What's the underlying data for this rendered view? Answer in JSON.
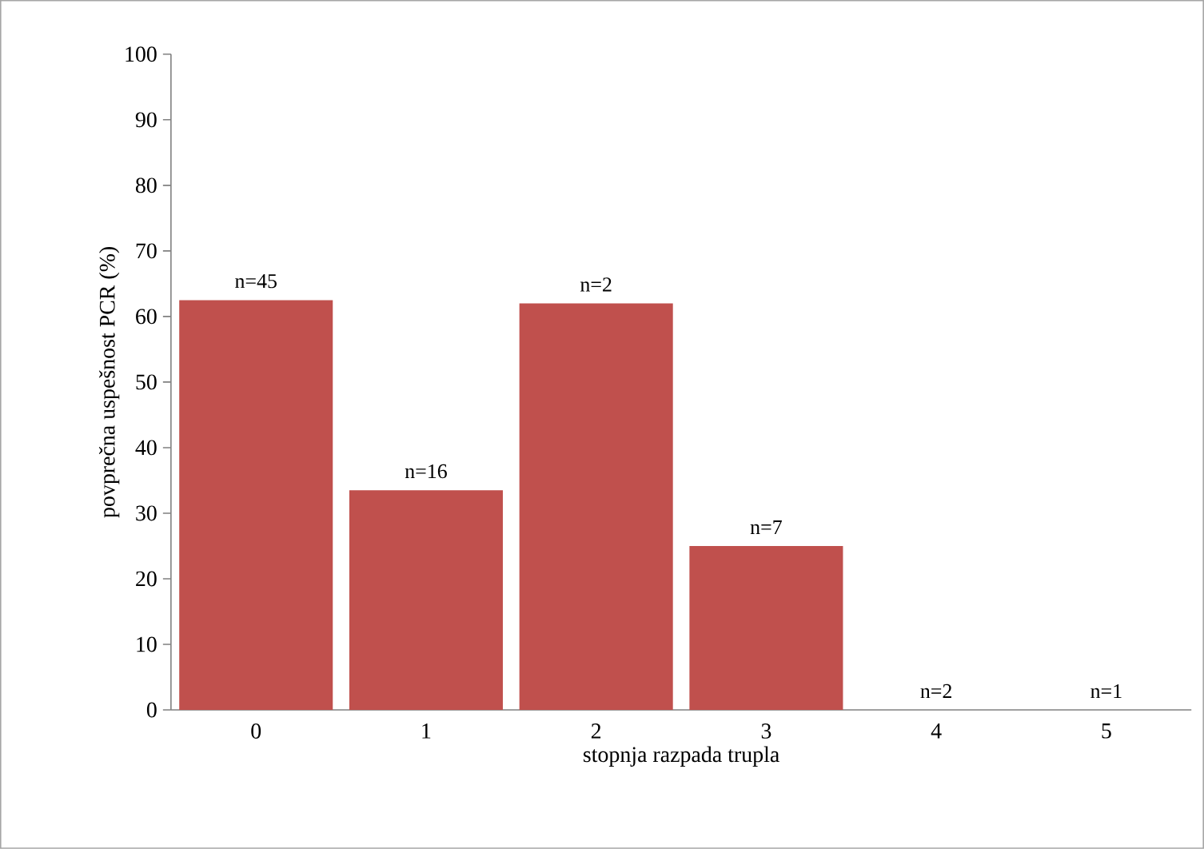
{
  "chart_data": {
    "type": "bar",
    "xlabel": "stopnja razpada trupla",
    "ylabel": "povprečna uspešnost PCR (%)",
    "categories": [
      "0",
      "1",
      "2",
      "3",
      "4",
      "5"
    ],
    "values": [
      62.5,
      33.5,
      62,
      25,
      0,
      0
    ],
    "color": "#c0504d",
    "ylim": [
      0,
      100
    ],
    "yticks": [
      0,
      10,
      20,
      30,
      40,
      50,
      60,
      70,
      80,
      90,
      100
    ],
    "grid": false,
    "annotations": [
      {
        "text": "n=45",
        "x": "0",
        "y": 62.5
      },
      {
        "text": "n=16",
        "x": "1",
        "y": 33.5
      },
      {
        "text": "n=2",
        "x": "2",
        "y": 62
      },
      {
        "text": "n=7",
        "x": "3",
        "y": 25
      },
      {
        "text": "n=2",
        "x": "4",
        "y": 0
      },
      {
        "text": "n=1",
        "x": "5",
        "y": 0
      }
    ]
  }
}
